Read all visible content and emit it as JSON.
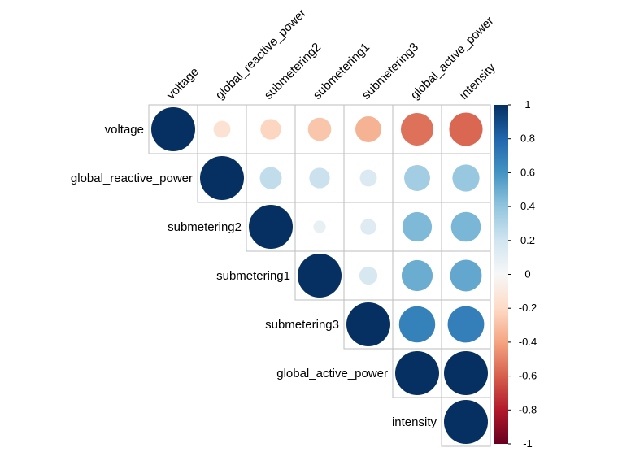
{
  "chart_data": {
    "type": "heatmap",
    "subtype": "corrplot-upper-circle",
    "variables": [
      "voltage",
      "global_reactive_power",
      "submetering2",
      "submetering1",
      "submetering3",
      "global_active_power",
      "intensity"
    ],
    "matrix": [
      [
        1.0,
        -0.15,
        -0.22,
        -0.28,
        -0.35,
        -0.55,
        -0.58
      ],
      [
        -0.15,
        1.0,
        0.25,
        0.22,
        0.15,
        0.35,
        0.38
      ],
      [
        -0.22,
        0.25,
        1.0,
        0.08,
        0.13,
        0.45,
        0.46
      ],
      [
        -0.28,
        0.22,
        0.08,
        1.0,
        0.17,
        0.5,
        0.52
      ],
      [
        -0.35,
        0.15,
        0.13,
        0.17,
        1.0,
        0.68,
        0.69
      ],
      [
        -0.55,
        0.35,
        0.45,
        0.5,
        0.68,
        1.0,
        1.0
      ],
      [
        -0.58,
        0.38,
        0.46,
        0.52,
        0.69,
        1.0,
        1.0
      ]
    ],
    "colorbar": {
      "range": [
        -1,
        1
      ],
      "ticks": [
        "1",
        "0.8",
        "0.6",
        "0.4",
        "0.2",
        "0",
        "-0.2",
        "-0.4",
        "-0.6",
        "-0.8",
        "-1"
      ],
      "colors": {
        "neg_strong": "#67001F",
        "neg_mid": "#D6604D",
        "neutral": "#F7F7F7",
        "pos_mid": "#4393C3",
        "pos_strong": "#053061"
      }
    }
  }
}
